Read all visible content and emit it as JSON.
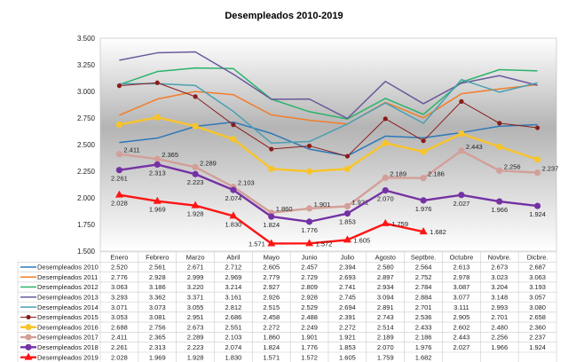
{
  "chart_data": {
    "type": "line",
    "title": "Desempleados 2010-2019",
    "categories": [
      "Enero",
      "Febrero",
      "Marzo",
      "Abril",
      "Mayo",
      "Junio",
      "Julio",
      "Agosto",
      "Septbre.",
      "Octubre",
      "Novbre.",
      "Dicbre."
    ],
    "ylim": [
      1500,
      3500
    ],
    "yticks": [
      "1.500",
      "1.750",
      "2.000",
      "2.250",
      "2.500",
      "2.750",
      "3.000",
      "3.250",
      "3.500"
    ],
    "grid": true,
    "legend": "table-below",
    "series": [
      {
        "name": "Desempleados 2010",
        "color": "#2f78b8",
        "marker": "none",
        "values": [
          2520,
          2561,
          2671,
          2712,
          2605,
          2457,
          2394,
          2580,
          2564,
          2613,
          2673,
          2687
        ]
      },
      {
        "name": "Desempleados 2011",
        "color": "#f27d2a",
        "marker": "none",
        "values": [
          2776,
          2928,
          2999,
          2969,
          2779,
          2729,
          2693,
          2897,
          2752,
          2978,
          3023,
          3063
        ]
      },
      {
        "name": "Desempleados 2012",
        "color": "#2bb36a",
        "marker": "none",
        "values": [
          3063,
          3186,
          3220,
          3214,
          2927,
          2809,
          2741,
          2934,
          2784,
          3087,
          3204,
          3193
        ]
      },
      {
        "name": "Desempleados 2013",
        "color": "#6b5a9a",
        "marker": "none",
        "values": [
          3293,
          3362,
          3371,
          3161,
          2926,
          2928,
          2745,
          3094,
          2884,
          3077,
          3148,
          3057
        ]
      },
      {
        "name": "Desempleados 2014",
        "color": "#4aa0b2",
        "marker": "none",
        "values": [
          3071,
          3073,
          3055,
          2812,
          2515,
          2529,
          2694,
          2891,
          2701,
          3111,
          2993,
          3080
        ]
      },
      {
        "name": "Desempleados 2015",
        "color": "#8b1c1c",
        "marker": "dot",
        "values": [
          3053,
          3081,
          2951,
          2686,
          2458,
          2488,
          2391,
          2743,
          2536,
          2905,
          2701,
          2658
        ]
      },
      {
        "name": "Desempleados 2016",
        "color": "#f8c42a",
        "marker": "circle",
        "values": [
          2688,
          2756,
          2673,
          2551,
          2272,
          2249,
          2272,
          2514,
          2433,
          2602,
          2480,
          2360
        ]
      },
      {
        "name": "Desempleados 2017",
        "color": "#d39f98",
        "marker": "circle",
        "labels": true,
        "values": [
          2411,
          2365,
          2289,
          2103,
          1860,
          1901,
          1921,
          2189,
          2186,
          2443,
          2256,
          2237
        ]
      },
      {
        "name": "Desempleados 2018",
        "color": "#7432a4",
        "marker": "circle",
        "labels": true,
        "values": [
          2261,
          2313,
          2223,
          2074,
          1824,
          1776,
          1853,
          2070,
          1976,
          2027,
          1966,
          1924
        ]
      },
      {
        "name": "Desempleados 2019",
        "color": "#ff1414",
        "marker": "triangle",
        "labels": true,
        "values": [
          2028,
          1969,
          1928,
          1830,
          1571,
          1572,
          1605,
          1759,
          1682,
          null,
          null,
          null
        ]
      }
    ]
  }
}
